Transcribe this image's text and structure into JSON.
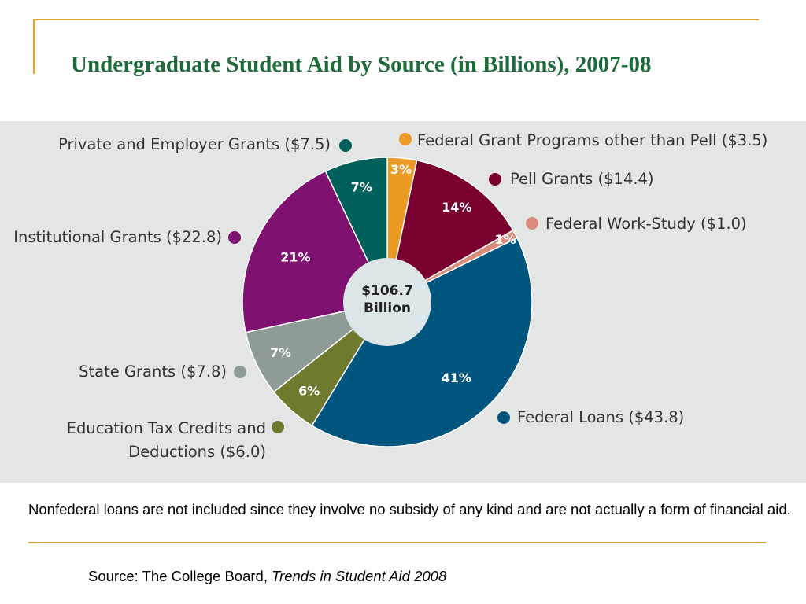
{
  "slide": {
    "title": "Undergraduate Student Aid by Source (in Billions), 2007-08",
    "note": "Nonfederal loans are not included since they involve no subsidy of any kind and are not actually a form of financial aid.",
    "source_prefix": "Source: The College Board, ",
    "source_title": "Trends in Student Aid 2008"
  },
  "chart_data": {
    "type": "pie",
    "center_label": [
      "$106.7",
      "Billion"
    ],
    "total": 106.7,
    "slices": [
      {
        "label": "Federal Grant Programs other than Pell ($3.5)",
        "value": 3.5,
        "percent_label": "3%",
        "color": "#eb9a23"
      },
      {
        "label": "Pell Grants ($14.4)",
        "value": 14.4,
        "percent_label": "14%",
        "color": "#7a0030"
      },
      {
        "label": "Federal Work-Study ($1.0)",
        "value": 1.0,
        "percent_label": "1%",
        "color": "#d98c7a"
      },
      {
        "label": "Federal Loans ($43.8)",
        "value": 43.8,
        "percent_label": "41%",
        "color": "#00567f"
      },
      {
        "label": "Education Tax Credits and Deductions ($6.0)",
        "value": 6.0,
        "percent_label": "6%",
        "color": "#6f7a2e"
      },
      {
        "label": "State Grants ($7.8)",
        "value": 7.8,
        "percent_label": "7%",
        "color": "#8f9b96"
      },
      {
        "label": "Institutional Grants ($22.8)",
        "value": 22.8,
        "percent_label": "21%",
        "color": "#7f1170"
      },
      {
        "label": "Private and Employer Grants ($7.5)",
        "value": 7.5,
        "percent_label": "7%",
        "color": "#00605a"
      }
    ]
  }
}
